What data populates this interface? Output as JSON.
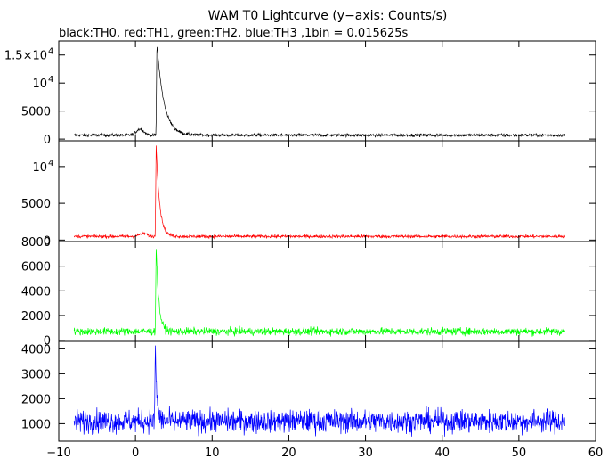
{
  "chart_data": {
    "type": "line",
    "title": "WAM T0 Lightcurve (y−axis: Counts/s)",
    "subtitle": "black:TH0, red:TH1, green:TH2, blue:TH3 ,1bin = 0.015625s",
    "xlabel": "",
    "ylabel": "",
    "grid": false,
    "x_ticks": [
      {
        "value": -10,
        "label": "−10"
      },
      {
        "value": 0,
        "label": "0"
      },
      {
        "value": 10,
        "label": "10"
      },
      {
        "value": 20,
        "label": "20"
      },
      {
        "value": 30,
        "label": "30"
      },
      {
        "value": 40,
        "label": "40"
      },
      {
        "value": 50,
        "label": "50"
      },
      {
        "value": 60,
        "label": "60"
      }
    ],
    "x_range": [
      -10,
      60
    ],
    "data_x_range": [
      -8,
      56
    ],
    "panels": [
      {
        "series_name": "TH0",
        "color": "#000000",
        "ylim": [
          -300,
          17500
        ],
        "y_ticks": [
          {
            "value": 0,
            "label": "0"
          },
          {
            "value": 5000,
            "label": "5000"
          },
          {
            "value": 10000,
            "label": "10",
            "exp": "4"
          },
          {
            "value": 15000,
            "label": "1.5×10",
            "exp": "4"
          }
        ],
        "baseline": 700,
        "noise": 200,
        "peak_time": 2.8,
        "peak_value": 17200,
        "decay_s": 0.9,
        "precursor": {
          "time": 0.6,
          "value": 1800
        }
      },
      {
        "series_name": "TH1",
        "color": "#ff0000",
        "ylim": [
          -200,
          13500
        ],
        "y_ticks": [
          {
            "value": 0,
            "label": "0"
          },
          {
            "value": 5000,
            "label": "5000"
          },
          {
            "value": 10000,
            "label": "10",
            "exp": "4"
          }
        ],
        "baseline": 500,
        "noise": 150,
        "peak_time": 2.7,
        "peak_value": 13100,
        "decay_s": 0.45,
        "precursor": {
          "time": 1.0,
          "value": 900
        }
      },
      {
        "series_name": "TH2",
        "color": "#00ff00",
        "ylim": [
          -100,
          8000
        ],
        "y_ticks": [
          {
            "value": 0,
            "label": "0"
          },
          {
            "value": 2000,
            "label": "2000"
          },
          {
            "value": 4000,
            "label": "4000"
          },
          {
            "value": 6000,
            "label": "6000"
          },
          {
            "value": 8000,
            "label": "8000"
          }
        ],
        "baseline": 700,
        "noise": 220,
        "peak_time": 2.7,
        "peak_value": 7600,
        "decay_s": 0.35,
        "precursor": null
      },
      {
        "series_name": "TH3",
        "color": "#0000ff",
        "ylim": [
          300,
          4300
        ],
        "y_ticks": [
          {
            "value": 1000,
            "label": "1000"
          },
          {
            "value": 2000,
            "label": "2000"
          },
          {
            "value": 3000,
            "label": "3000"
          },
          {
            "value": 4000,
            "label": "4000"
          }
        ],
        "baseline": 1100,
        "noise": 330,
        "peak_time": 2.6,
        "peak_value": 4000,
        "decay_s": 0.2,
        "precursor": null
      }
    ]
  }
}
